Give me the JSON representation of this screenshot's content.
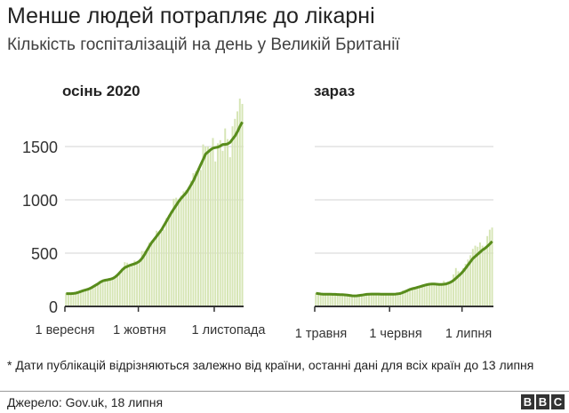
{
  "title": "Менше людей потрапляє до лікарні",
  "subtitle": "Кількість госпіталізацій на день у Великій Британії",
  "footnote": "* Дати публікацій відрізняються залежно від країни, останні дані для всіх країн до 13 липня",
  "source": "Джерело: Gov.uk, 18 липня",
  "logo": "BBC",
  "colors": {
    "bars": "#d6e5b5",
    "line": "#588c1c",
    "grid": "#e2e2e2",
    "axis": "#333333"
  },
  "chart_data": [
    {
      "type": "bar+line",
      "title": "осінь 2020",
      "ylim": [
        0,
        1950
      ],
      "yticks": [
        0,
        500,
        1000,
        1500
      ],
      "ytick_labels": [
        "0",
        "500",
        "1000",
        "1500"
      ],
      "grid": true,
      "x_start": "2020-09-01",
      "xtick_days": [
        0,
        30,
        61
      ],
      "xtick_labels": [
        "1 вересня",
        "1 жовтня",
        "1 листопада"
      ],
      "daily": [
        125,
        118,
        115,
        130,
        128,
        120,
        145,
        150,
        160,
        170,
        168,
        190,
        205,
        220,
        225,
        235,
        250,
        240,
        260,
        275,
        280,
        300,
        330,
        360,
        415,
        410,
        370,
        390,
        430,
        420,
        440,
        520,
        520,
        530,
        600,
        620,
        640,
        710,
        690,
        700,
        720,
        830,
        860,
        900,
        1010,
        1020,
        1000,
        1040,
        1080,
        1090,
        1110,
        1180,
        1250,
        1270,
        1300,
        1280,
        1520,
        1500,
        1500,
        1480,
        1580,
        1360,
        1530,
        1560,
        1460,
        1670,
        1570,
        1400,
        1690,
        1760,
        1830,
        1950,
        1900
      ],
      "average": [
        120,
        120,
        120,
        122,
        125,
        132,
        140,
        148,
        155,
        162,
        172,
        185,
        198,
        212,
        228,
        240,
        246,
        250,
        255,
        262,
        275,
        295,
        320,
        345,
        365,
        375,
        385,
        393,
        400,
        410,
        425,
        450,
        485,
        525,
        565,
        600,
        630,
        660,
        690,
        720,
        760,
        800,
        840,
        880,
        915,
        950,
        985,
        1015,
        1040,
        1065,
        1100,
        1140,
        1180,
        1230,
        1280,
        1330,
        1380,
        1430,
        1450,
        1470,
        1485,
        1490,
        1495,
        1505,
        1520,
        1520,
        1525,
        1540,
        1570,
        1600,
        1640,
        1690,
        1730
      ]
    },
    {
      "type": "bar+line",
      "title": "зараз",
      "ylim": [
        0,
        1950
      ],
      "yticks": [
        0,
        500,
        1000,
        1500
      ],
      "grid": true,
      "x_start": "2021-05-01",
      "xtick_days": [
        0,
        31,
        61
      ],
      "xtick_labels": [
        "1 травня",
        "1 червня",
        "1 липня"
      ],
      "daily": [
        125,
        120,
        110,
        118,
        120,
        112,
        115,
        110,
        118,
        112,
        108,
        112,
        106,
        104,
        100,
        98,
        100,
        102,
        106,
        110,
        115,
        118,
        116,
        114,
        118,
        120,
        116,
        112,
        118,
        118,
        125,
        112,
        118,
        120,
        125,
        135,
        150,
        155,
        160,
        170,
        165,
        180,
        180,
        190,
        190,
        200,
        210,
        212,
        215,
        205,
        210,
        200,
        205,
        240,
        210,
        225,
        240,
        300,
        360,
        330,
        320,
        360,
        400,
        440,
        480,
        540,
        570,
        560,
        600,
        570,
        560,
        660,
        720,
        740
      ],
      "average": [
        123,
        120,
        117,
        115,
        115,
        114,
        114,
        113,
        113,
        112,
        111,
        110,
        108,
        106,
        103,
        100,
        99,
        100,
        103,
        106,
        110,
        113,
        115,
        116,
        116,
        116,
        116,
        115,
        115,
        115,
        115,
        115,
        115,
        116,
        118,
        122,
        130,
        140,
        150,
        160,
        167,
        172,
        178,
        185,
        192,
        198,
        204,
        208,
        210,
        210,
        208,
        206,
        206,
        208,
        212,
        220,
        230,
        245,
        265,
        285,
        305,
        330,
        360,
        390,
        420,
        450,
        470,
        490,
        510,
        530,
        545,
        565,
        585,
        610
      ]
    }
  ]
}
